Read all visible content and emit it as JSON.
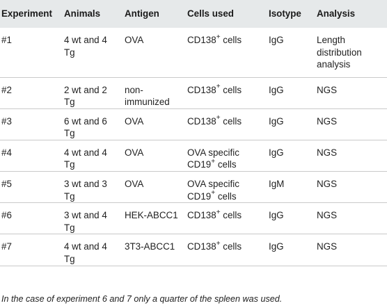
{
  "table": {
    "headers": [
      "Experiment",
      "Animals",
      "Antigen",
      "Cells used",
      "Isotype",
      "Analysis"
    ],
    "rows": [
      {
        "experiment": "#1",
        "animals": [
          "4 wt and 4",
          "Tg"
        ],
        "antigen": [
          "OVA"
        ],
        "cells": [
          {
            "pre": "CD138",
            "sup": "+",
            "post": " cells"
          }
        ],
        "isotype": "IgG",
        "analysis": [
          "Length",
          "distribution",
          "analysis"
        ]
      },
      {
        "experiment": "#2",
        "animals": [
          "2 wt and 2",
          "Tg"
        ],
        "antigen": [
          "non-",
          "immunized"
        ],
        "cells": [
          {
            "pre": "CD138",
            "sup": "+",
            "post": " cells"
          }
        ],
        "isotype": "IgG",
        "analysis": [
          "NGS"
        ]
      },
      {
        "experiment": "#3",
        "animals": [
          "6 wt and 6",
          "Tg"
        ],
        "antigen": [
          "OVA"
        ],
        "cells": [
          {
            "pre": "CD138",
            "sup": "+",
            "post": " cells"
          }
        ],
        "isotype": "IgG",
        "analysis": [
          "NGS"
        ]
      },
      {
        "experiment": "#4",
        "animals": [
          "4 wt and 4",
          "Tg"
        ],
        "antigen": [
          "OVA"
        ],
        "cells": [
          {
            "pre": "OVA specific",
            "sup": "",
            "post": ""
          },
          {
            "pre": "CD19",
            "sup": "+",
            "post": " cells"
          }
        ],
        "isotype": "IgG",
        "analysis": [
          "NGS"
        ]
      },
      {
        "experiment": "#5",
        "animals": [
          "3 wt and 3",
          "Tg"
        ],
        "antigen": [
          "OVA"
        ],
        "cells": [
          {
            "pre": "OVA specific",
            "sup": "",
            "post": ""
          },
          {
            "pre": "CD19",
            "sup": "+",
            "post": " cells"
          }
        ],
        "isotype": "IgM",
        "analysis": [
          "NGS"
        ]
      },
      {
        "experiment": "#6",
        "animals": [
          "3 wt and 4",
          "Tg"
        ],
        "antigen": [
          "HEK-ABCC1"
        ],
        "cells": [
          {
            "pre": "CD138",
            "sup": "+",
            "post": " cells"
          }
        ],
        "isotype": "IgG",
        "analysis": [
          "NGS"
        ]
      },
      {
        "experiment": "#7",
        "animals": [
          "4 wt and 4",
          "Tg"
        ],
        "antigen": [
          "3T3-ABCC1"
        ],
        "cells": [
          {
            "pre": "CD138",
            "sup": "+",
            "post": " cells"
          }
        ],
        "isotype": "IgG",
        "analysis": [
          "NGS"
        ]
      }
    ]
  },
  "footnote": "In the case of experiment 6 and 7 only a quarter of the spleen was used."
}
